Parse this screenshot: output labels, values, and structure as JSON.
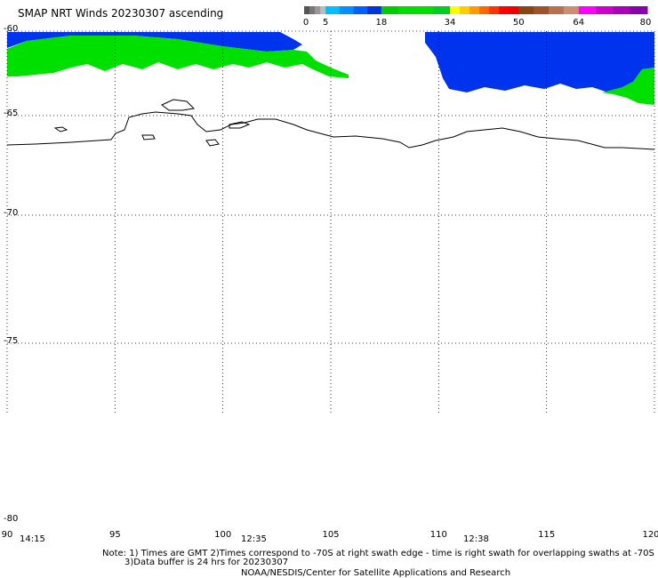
{
  "title": "SMAP NRT Winds 20230307 ascending",
  "colorbar": {
    "ticks": [
      "0",
      "5",
      "18",
      "34",
      "50",
      "64",
      "80"
    ],
    "segments": [
      {
        "from": 0,
        "to": 5,
        "colors": [
          "#555555",
          "#777777",
          "#999999",
          "#bbbbbb"
        ]
      },
      {
        "from": 5,
        "to": 18,
        "colors": [
          "#00bfff",
          "#0090ff",
          "#0060ff",
          "#0033dd"
        ]
      },
      {
        "from": 18,
        "to": 34,
        "colors": [
          "#00cc00",
          "#00dd00",
          "#00e000",
          "#00cc22"
        ]
      },
      {
        "from": 34,
        "to": 50,
        "colors": [
          "#ffff00",
          "#ffcc00",
          "#ff9900",
          "#ff6600",
          "#ff3300",
          "#ff0000",
          "#ee0000"
        ]
      },
      {
        "from": 50,
        "to": 64,
        "colors": [
          "#8b4513",
          "#a0522d",
          "#b87050",
          "#c89070"
        ]
      },
      {
        "from": 64,
        "to": 80,
        "colors": [
          "#ff00ff",
          "#cc00cc",
          "#aa00bb",
          "#8800aa"
        ]
      }
    ]
  },
  "map": {
    "lat_labels": [
      "-60",
      "-65",
      "-70",
      "-75",
      "-80"
    ],
    "lon_labels": [
      "90",
      "95",
      "100",
      "105",
      "110",
      "115",
      "120"
    ],
    "lat_range": [
      -80,
      -60
    ],
    "lon_range": [
      90,
      120
    ],
    "gridlines": true,
    "colors": {
      "swath_blue": "#0033ee",
      "swath_green": "#00e000",
      "coast": "#000000",
      "grid": "#000000"
    }
  },
  "times": [
    "14:15",
    "12:35",
    "12:38"
  ],
  "notes": {
    "line1": "Note: 1) Times are GMT 2)Times correspond to -70S at right swath edge - time is right swath for overlapping swaths at -70S",
    "line2": "3)Data buffer is 24 hrs for 20230307",
    "line3": "NOAA/NESDIS/Center for Satellite Applications and Research"
  }
}
